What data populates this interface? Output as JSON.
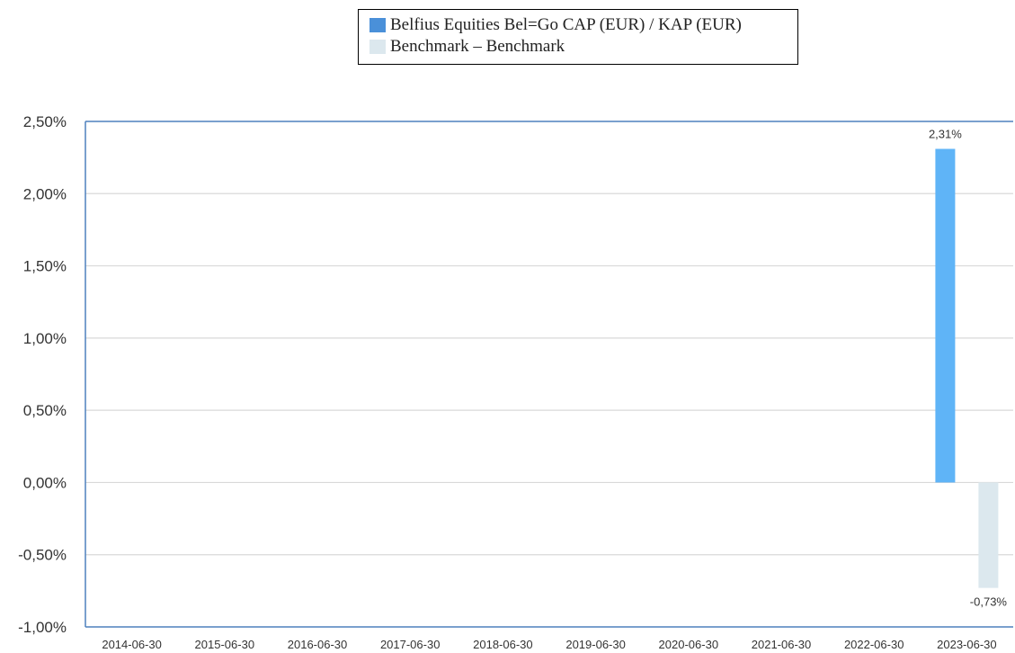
{
  "chart_data": {
    "type": "bar",
    "categories": [
      "2014-06-30",
      "2015-06-30",
      "2016-06-30",
      "2017-06-30",
      "2018-06-30",
      "2019-06-30",
      "2020-06-30",
      "2021-06-30",
      "2022-06-30",
      "2023-06-30"
    ],
    "series": [
      {
        "name": "Belfius Equities Bel=Go CAP (EUR) / KAP (EUR)",
        "color": "#5fb4f7",
        "values": [
          null,
          null,
          null,
          null,
          null,
          null,
          null,
          null,
          null,
          2.31
        ],
        "data_labels": [
          null,
          null,
          null,
          null,
          null,
          null,
          null,
          null,
          null,
          "2,31%"
        ]
      },
      {
        "name": "Benchmark – Benchmark",
        "color": "#dce8ee",
        "values": [
          null,
          null,
          null,
          null,
          null,
          null,
          null,
          null,
          null,
          -0.73
        ],
        "data_labels": [
          null,
          null,
          null,
          null,
          null,
          null,
          null,
          null,
          null,
          "-0,73%"
        ]
      }
    ],
    "title": "",
    "xlabel": "",
    "ylabel": "",
    "ylim": [
      -1.0,
      2.5
    ],
    "yticks": [
      -1.0,
      -0.5,
      0.0,
      0.5,
      1.0,
      1.5,
      2.0,
      2.5
    ],
    "ytick_labels": [
      "-1,00%",
      "-0,50%",
      "0,00%",
      "0,50%",
      "1,00%",
      "1,50%",
      "2,00%",
      "2,50%"
    ],
    "grid": true,
    "legend_position": "top-center",
    "axis_color": "#4f81bd",
    "grid_color": "#d9d9d9",
    "legend_swatch_colors": [
      "#4a90d9",
      "#dce8ee"
    ]
  }
}
